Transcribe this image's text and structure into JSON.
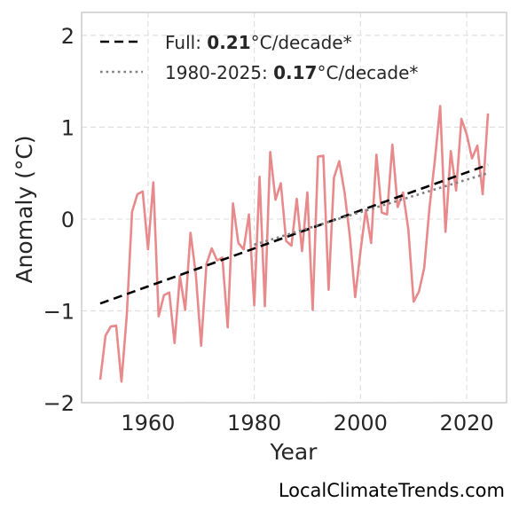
{
  "chart_data": {
    "type": "line",
    "xlabel": "Year",
    "ylabel": "Anomaly (°C)",
    "xlim": [
      1947.5,
      2027.5
    ],
    "ylim": [
      -2.0,
      2.25
    ],
    "xticks": [
      "1960",
      "1980",
      "2000",
      "2020"
    ],
    "yticks": [
      "−2",
      "−1",
      "0",
      "1",
      "2"
    ],
    "grid": true,
    "legend_position": "top-left",
    "colors": {
      "anomaly": "#e8898b",
      "full_trend": "#000000",
      "recent_trend": "#808080",
      "grid": "#e0e0e0",
      "frame": "#cccccc"
    },
    "series": [
      {
        "key": "anomaly",
        "x": [
          1951,
          1952,
          1953,
          1954,
          1955,
          1956,
          1957,
          1958,
          1959,
          1960,
          1961,
          1962,
          1963,
          1964,
          1965,
          1966,
          1967,
          1968,
          1969,
          1970,
          1971,
          1972,
          1973,
          1974,
          1975,
          1976,
          1977,
          1978,
          1979,
          1980,
          1981,
          1982,
          1983,
          1984,
          1985,
          1986,
          1987,
          1988,
          1989,
          1990,
          1991,
          1992,
          1993,
          1994,
          1995,
          1996,
          1997,
          1998,
          1999,
          2000,
          2001,
          2002,
          2003,
          2004,
          2005,
          2006,
          2007,
          2008,
          2009,
          2010,
          2011,
          2012,
          2013,
          2014,
          2015,
          2016,
          2017,
          2018,
          2019,
          2020,
          2021,
          2022,
          2023,
          2024
        ],
        "values": [
          -1.75,
          -1.27,
          -1.17,
          -1.16,
          -1.77,
          -1.05,
          0.08,
          0.27,
          0.3,
          -0.33,
          0.4,
          -1.06,
          -0.83,
          -0.8,
          -1.35,
          -0.62,
          -0.99,
          -0.15,
          -0.6,
          -1.38,
          -0.49,
          -0.32,
          -0.45,
          -0.42,
          -1.18,
          0.17,
          -0.26,
          -0.33,
          0.05,
          -0.94,
          0.46,
          -0.95,
          0.73,
          0.21,
          0.39,
          -0.24,
          -0.29,
          0.22,
          -0.35,
          0.29,
          -0.99,
          0.68,
          0.69,
          -0.77,
          0.45,
          0.63,
          0.29,
          -0.19,
          -0.85,
          -0.35,
          0.1,
          -0.26,
          0.7,
          0.07,
          0.05,
          0.81,
          0.13,
          0.29,
          -0.11,
          -0.9,
          -0.79,
          -0.53,
          0.13,
          0.64,
          1.23,
          -0.14,
          0.74,
          0.31,
          1.09,
          0.92,
          0.66,
          0.8,
          0.27,
          1.15
        ]
      },
      {
        "key": "full_trend",
        "name": "Full: 0.21°C/decade*",
        "x": [
          1951,
          2024
        ],
        "values": [
          -0.92,
          0.59
        ]
      },
      {
        "key": "recent_trend",
        "name": "1980-2025: 0.17°C/decade*",
        "x": [
          1980,
          2024
        ],
        "values": [
          -0.28,
          0.5
        ]
      }
    ],
    "legend": [
      {
        "prefix": "Full: ",
        "value": "0.21",
        "suffix": "°C/decade*"
      },
      {
        "prefix": "1980-2025: ",
        "value": "0.17",
        "suffix": "°C/decade*"
      }
    ]
  },
  "credit": "LocalClimateTrends.com"
}
